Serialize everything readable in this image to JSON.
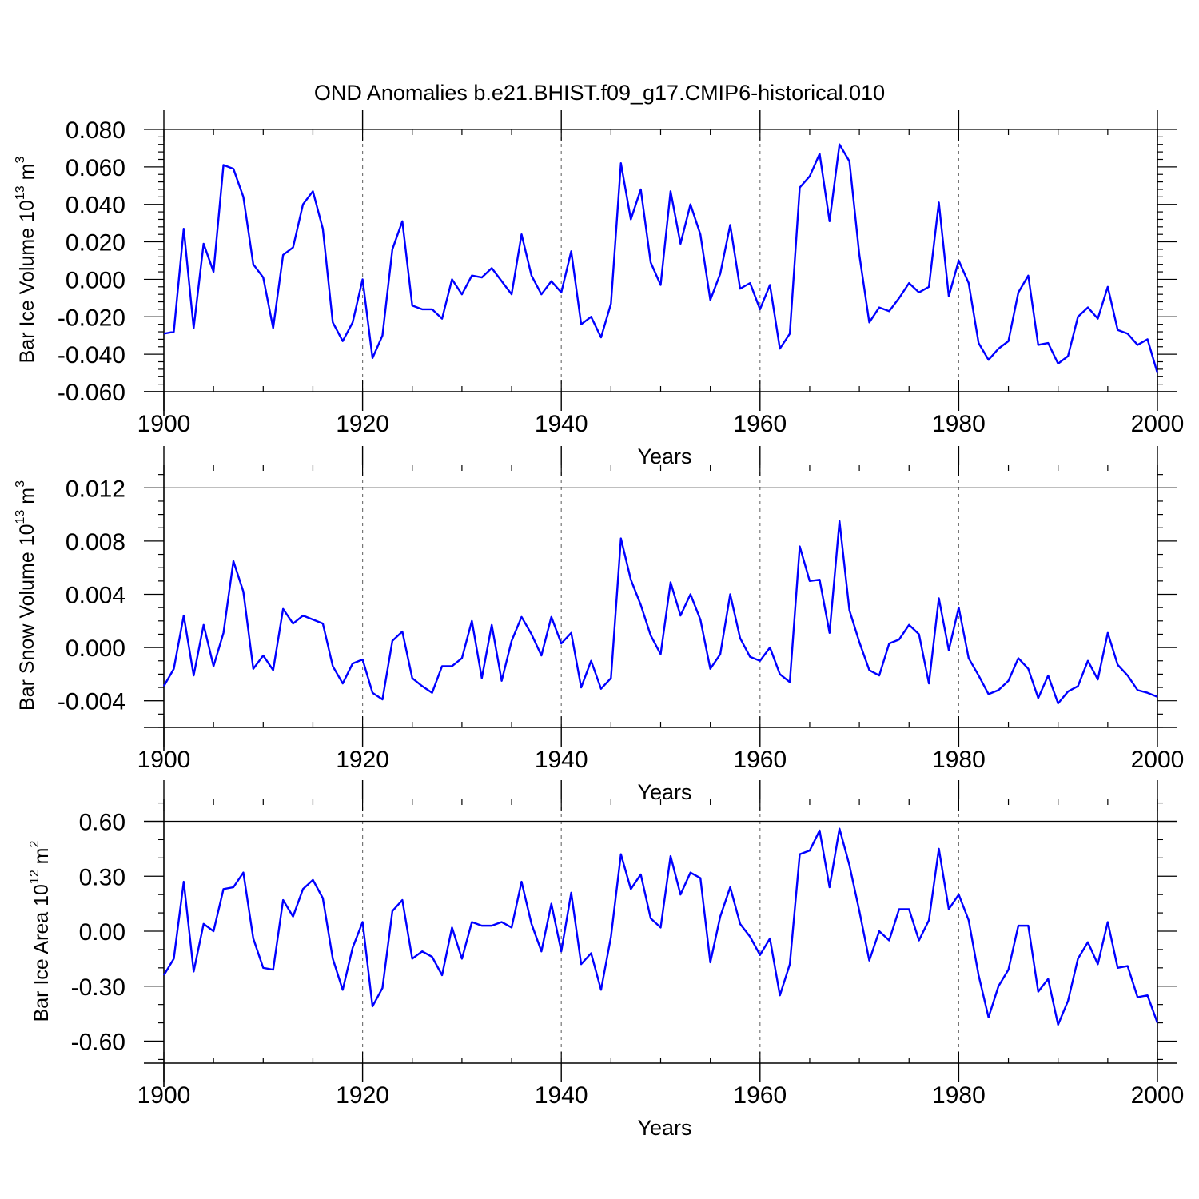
{
  "figure_title": "OND Anomalies b.e21.BHIST.f09_g17.CMIP6-historical.010",
  "colors": {
    "line": "#0000ff",
    "grid": "#777777",
    "axis": "#000000",
    "background": "#ffffff"
  },
  "chart_data": [
    {
      "type": "line",
      "title": "OND Anomalies b.e21.BHIST.f09_g17.CMIP6-historical.010",
      "xlabel": "Years",
      "ylabel": {
        "main": "Bar Ice Volume 10",
        "exponent": "13",
        "unit": " m",
        "unit_exponent": "3"
      },
      "xlim": [
        1900,
        2000
      ],
      "ylim": [
        -0.06,
        0.08
      ],
      "y_ticks": [
        -0.06,
        -0.04,
        -0.02,
        0.0,
        0.02,
        0.04,
        0.06,
        0.08
      ],
      "y_tick_labels": [
        "-0.060",
        "-0.040",
        "-0.020",
        "0.000",
        "0.020",
        "0.040",
        "0.060",
        "0.080"
      ],
      "y_minor_step": 0.004,
      "x_ticks": [
        1900,
        1920,
        1940,
        1960,
        1980,
        2000
      ],
      "x_tick_labels": [
        "1900",
        "1920",
        "1940",
        "1960",
        "1980",
        "2000"
      ],
      "x_minor_step": 5,
      "vertical_gridlines": [
        1920,
        1940,
        1960,
        1980
      ],
      "series": [
        {
          "name": "Bar Ice Volume",
          "x_start": 1900,
          "values": [
            -0.029,
            -0.028,
            0.027,
            -0.026,
            0.019,
            0.004,
            0.061,
            0.059,
            0.044,
            0.008,
            0.001,
            -0.026,
            0.013,
            0.017,
            0.04,
            0.047,
            0.027,
            -0.023,
            -0.033,
            -0.023,
            0.0,
            -0.042,
            -0.03,
            0.016,
            0.031,
            -0.014,
            -0.016,
            -0.016,
            -0.021,
            0.0,
            -0.008,
            0.002,
            0.001,
            0.006,
            -0.001,
            -0.008,
            0.024,
            0.002,
            -0.008,
            -0.001,
            -0.007,
            0.015,
            -0.024,
            -0.02,
            -0.031,
            -0.013,
            0.062,
            0.032,
            0.048,
            0.009,
            -0.003,
            0.047,
            0.019,
            0.04,
            0.024,
            -0.011,
            0.003,
            0.029,
            -0.005,
            -0.002,
            -0.016,
            -0.003,
            -0.037,
            -0.029,
            0.049,
            0.055,
            0.067,
            0.031,
            0.072,
            0.063,
            0.013,
            -0.023,
            -0.015,
            -0.017,
            -0.01,
            -0.002,
            -0.007,
            -0.004,
            0.041,
            -0.009,
            0.01,
            -0.002,
            -0.034,
            -0.043,
            -0.037,
            -0.033,
            -0.007,
            0.002,
            -0.035,
            -0.034,
            -0.045,
            -0.041,
            -0.02,
            -0.015,
            -0.021,
            -0.004,
            -0.027,
            -0.029,
            -0.035,
            -0.032,
            -0.05
          ]
        }
      ]
    },
    {
      "type": "line",
      "xlabel": "Years",
      "ylabel": {
        "main": "Bar Snow Volume 10",
        "exponent": "13",
        "unit": " m",
        "unit_exponent": "3"
      },
      "xlim": [
        1900,
        2000
      ],
      "ylim": [
        -0.006,
        0.0137
      ],
      "y_ticks": [
        -0.004,
        0.0,
        0.004,
        0.008,
        0.012
      ],
      "y_tick_labels": [
        "-0.004",
        "0.000",
        "0.004",
        "0.008",
        "0.012"
      ],
      "y_minor_step": 0.001,
      "x_ticks": [
        1900,
        1920,
        1940,
        1960,
        1980,
        2000
      ],
      "x_tick_labels": [
        "1900",
        "1920",
        "1940",
        "1960",
        "1980",
        "2000"
      ],
      "x_minor_step": 5,
      "vertical_gridlines": [
        1920,
        1940,
        1960,
        1980
      ],
      "series": [
        {
          "name": "Bar Snow Volume",
          "x_start": 1900,
          "values": [
            -0.0029,
            -0.0016,
            0.0024,
            -0.0021,
            0.0017,
            -0.0014,
            0.0011,
            0.0065,
            0.0042,
            -0.0016,
            -0.0006,
            -0.0017,
            0.0029,
            0.0018,
            0.0024,
            0.0021,
            0.0018,
            -0.0014,
            -0.0027,
            -0.0012,
            -0.0009,
            -0.0034,
            -0.0039,
            0.0005,
            0.0012,
            -0.0023,
            -0.0029,
            -0.0034,
            -0.0014,
            -0.0014,
            -0.0008,
            0.002,
            -0.0023,
            0.0017,
            -0.0025,
            0.0005,
            0.0023,
            0.001,
            -0.0006,
            0.0023,
            0.0003,
            0.0011,
            -0.003,
            -0.001,
            -0.0031,
            -0.0023,
            0.0082,
            0.0051,
            0.0032,
            0.0009,
            -0.0005,
            0.0049,
            0.0024,
            0.004,
            0.0021,
            -0.0016,
            -0.0005,
            0.004,
            0.0007,
            -0.0007,
            -0.001,
            0.0,
            -0.002,
            -0.0026,
            0.0076,
            0.005,
            0.0051,
            0.0011,
            0.0095,
            0.0028,
            0.0004,
            -0.0017,
            -0.0021,
            0.0003,
            0.0006,
            0.0017,
            0.001,
            -0.0027,
            0.0037,
            -0.0002,
            0.003,
            -0.0008,
            -0.0021,
            -0.0035,
            -0.0032,
            -0.0025,
            -0.0008,
            -0.0016,
            -0.0038,
            -0.0021,
            -0.0042,
            -0.0033,
            -0.0029,
            -0.001,
            -0.0024,
            0.0011,
            -0.0013,
            -0.0021,
            -0.0032,
            -0.0034,
            -0.0037
          ]
        }
      ]
    },
    {
      "type": "line",
      "xlabel": "Years",
      "ylabel": {
        "main": "Bar Ice Area 10",
        "exponent": "12",
        "unit": " m",
        "unit_exponent": "2"
      },
      "xlim": [
        1900,
        2000
      ],
      "ylim": [
        -0.72,
        0.72
      ],
      "y_ticks": [
        -0.6,
        -0.3,
        0.0,
        0.3,
        0.6
      ],
      "y_tick_labels": [
        "-0.60",
        "-0.30",
        "0.00",
        "0.30",
        "0.60"
      ],
      "y_minor_step": 0.1,
      "x_ticks": [
        1900,
        1920,
        1940,
        1960,
        1980,
        2000
      ],
      "x_tick_labels": [
        "1900",
        "1920",
        "1940",
        "1960",
        "1980",
        "2000"
      ],
      "x_minor_step": 5,
      "vertical_gridlines": [
        1920,
        1940,
        1960,
        1980
      ],
      "series": [
        {
          "name": "Bar Ice Area",
          "x_start": 1900,
          "values": [
            -0.24,
            -0.15,
            0.27,
            -0.22,
            0.04,
            0.0,
            0.23,
            0.24,
            0.32,
            -0.04,
            -0.2,
            -0.21,
            0.17,
            0.08,
            0.23,
            0.28,
            0.18,
            -0.15,
            -0.32,
            -0.09,
            0.05,
            -0.41,
            -0.31,
            0.11,
            0.17,
            -0.15,
            -0.11,
            -0.14,
            -0.24,
            0.02,
            -0.15,
            0.05,
            0.03,
            0.03,
            0.05,
            0.02,
            0.27,
            0.04,
            -0.11,
            0.15,
            -0.11,
            0.21,
            -0.18,
            -0.12,
            -0.32,
            -0.03,
            0.42,
            0.23,
            0.31,
            0.07,
            0.02,
            0.41,
            0.2,
            0.32,
            0.29,
            -0.17,
            0.08,
            0.24,
            0.04,
            -0.03,
            -0.13,
            -0.04,
            -0.35,
            -0.18,
            0.42,
            0.44,
            0.55,
            0.24,
            0.56,
            0.36,
            0.11,
            -0.16,
            0.0,
            -0.05,
            0.12,
            0.12,
            -0.05,
            0.06,
            0.45,
            0.12,
            0.2,
            0.06,
            -0.24,
            -0.47,
            -0.3,
            -0.21,
            0.03,
            0.03,
            -0.33,
            -0.26,
            -0.51,
            -0.38,
            -0.15,
            -0.06,
            -0.18,
            0.05,
            -0.2,
            -0.19,
            -0.36,
            -0.35,
            -0.5
          ]
        }
      ]
    }
  ]
}
